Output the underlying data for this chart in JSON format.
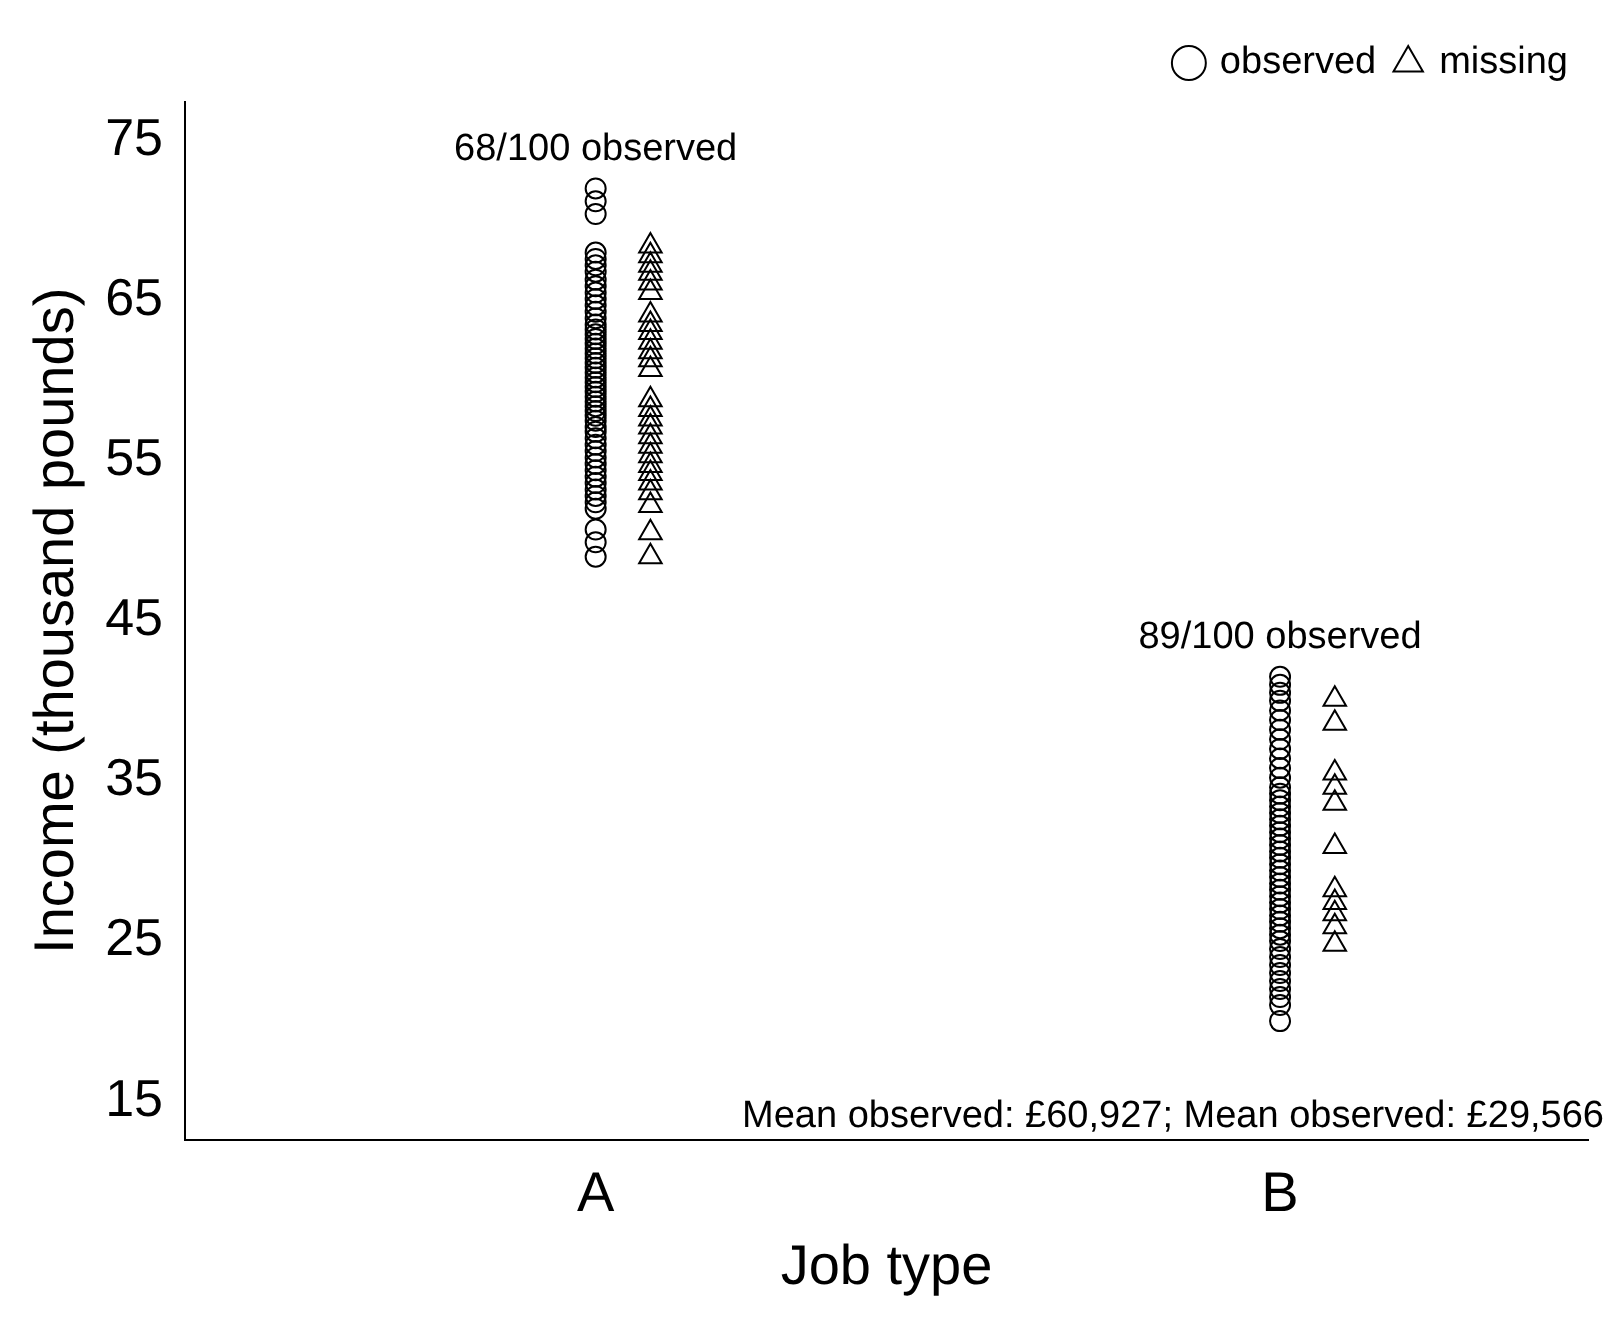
{
  "chart_data": {
    "type": "scatter",
    "xlabel": "Job type",
    "ylabel": "Income (thousand pounds)",
    "categories": [
      "A",
      "B"
    ],
    "ylim": [
      12.6,
      77.4
    ],
    "yticks": [
      15,
      25,
      35,
      45,
      55,
      65,
      75
    ],
    "grid": false,
    "legend": "top right",
    "annotations": [
      "68/100 observed",
      "89/100 observed",
      "Mean observed: £60,927; Mean observed: £29,566"
    ],
    "series": [
      {
        "name": "observed",
        "color": "#000000",
        "marker": "circle",
        "x": [
          "A",
          "A",
          "A",
          "A",
          "A",
          "A",
          "A",
          "A",
          "A",
          "A",
          "A",
          "A",
          "A",
          "A",
          "A",
          "A",
          "A",
          "A",
          "A",
          "A",
          "A",
          "A",
          "A",
          "A",
          "A",
          "A",
          "A",
          "A",
          "A",
          "A",
          "A",
          "A",
          "A",
          "A",
          "A",
          "A",
          "A",
          "A",
          "A",
          "A",
          "A",
          "A",
          "A",
          "A",
          "A",
          "A",
          "A",
          "A",
          "A",
          "A",
          "A",
          "A",
          "B",
          "B",
          "B",
          "B",
          "B",
          "B",
          "B",
          "B",
          "B",
          "B",
          "B",
          "B",
          "B",
          "B",
          "B",
          "B",
          "B",
          "B",
          "B",
          "B",
          "B",
          "B",
          "B",
          "B",
          "B",
          "B",
          "B",
          "B",
          "B",
          "B",
          "B",
          "B",
          "B",
          "B",
          "B",
          "B",
          "B",
          "B",
          "B",
          "B",
          "B",
          "B",
          "B",
          "B",
          "B",
          "B"
        ],
        "values": [
          72.0,
          71.2,
          70.4,
          68.0,
          67.6,
          67.2,
          66.8,
          66.3,
          65.9,
          65.5,
          65.1,
          64.7,
          64.3,
          63.9,
          63.5,
          63.2,
          62.9,
          62.6,
          62.3,
          62.0,
          61.7,
          61.4,
          61.1,
          60.8,
          60.5,
          60.2,
          59.9,
          59.6,
          59.3,
          59.0,
          58.7,
          58.4,
          58.1,
          57.8,
          57.5,
          57.1,
          56.8,
          56.4,
          56.0,
          55.6,
          55.2,
          54.8,
          54.4,
          54.0,
          53.6,
          53.2,
          52.8,
          52.4,
          52.0,
          50.7,
          49.9,
          49.0,
          41.5,
          41.0,
          40.5,
          40.0,
          39.4,
          38.8,
          38.2,
          37.6,
          37.0,
          36.4,
          35.8,
          35.2,
          34.6,
          34.2,
          33.8,
          33.4,
          33.0,
          32.6,
          32.2,
          31.8,
          31.4,
          31.0,
          30.6,
          30.2,
          29.8,
          29.4,
          29.0,
          28.6,
          28.2,
          27.8,
          27.4,
          27.0,
          26.6,
          26.2,
          25.8,
          25.4,
          25.0,
          24.5,
          24.0,
          23.5,
          23.0,
          22.5,
          22.0,
          21.5,
          21.0,
          20.0
        ]
      },
      {
        "name": "missing",
        "color": "#000000",
        "marker": "triangle",
        "x": [
          "A",
          "A",
          "A",
          "A",
          "A",
          "A",
          "A",
          "A",
          "A",
          "A",
          "A",
          "A",
          "A",
          "A",
          "A",
          "A",
          "A",
          "A",
          "A",
          "A",
          "A",
          "A",
          "A",
          "A",
          "A",
          "A",
          "A",
          "B",
          "B",
          "B",
          "B",
          "B",
          "B",
          "B",
          "B",
          "B",
          "B",
          "B"
        ],
        "values": [
          68.4,
          67.8,
          67.2,
          66.7,
          66.1,
          65.5,
          64.1,
          63.5,
          63.0,
          62.4,
          61.8,
          61.3,
          60.7,
          58.8,
          58.2,
          57.6,
          57.1,
          56.5,
          55.9,
          55.3,
          54.7,
          54.2,
          53.6,
          53.0,
          52.2,
          50.5,
          49.0,
          40.1,
          38.6,
          35.5,
          34.6,
          33.6,
          30.9,
          28.2,
          27.4,
          26.7,
          25.9,
          24.8
        ]
      }
    ]
  }
}
